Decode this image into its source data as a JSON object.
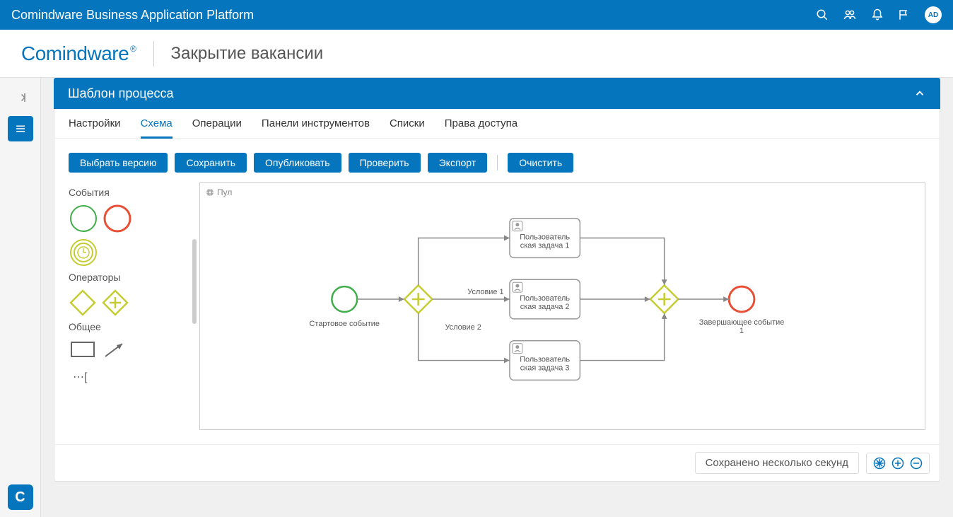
{
  "topbar": {
    "title": "Comindware Business Application Platform",
    "avatar": "AD"
  },
  "subheader": {
    "logo": "Comindware",
    "page_title": "Закрытие вакансии"
  },
  "panel": {
    "title": "Шаблон процесса",
    "tabs": [
      "Настройки",
      "Схема",
      "Операции",
      "Панели инструментов",
      "Списки",
      "Права доступа"
    ],
    "active_tab": 1,
    "toolbar": {
      "select_version": "Выбрать версию",
      "save": "Сохранить",
      "publish": "Опубликовать",
      "check": "Проверить",
      "export": "Экспорт",
      "clear": "Очистить"
    },
    "palette": {
      "events": "События",
      "operators": "Операторы",
      "general": "Общее"
    },
    "canvas": {
      "pool_label": "Пул",
      "start_label": "Стартовое событие",
      "end_label": "Завершающее событие 1",
      "cond1": "Условие 1",
      "cond2": "Условие 2",
      "task1": "Пользователь\nская задача 1",
      "task2": "Пользователь\nская задача 2",
      "task3": "Пользователь\nская задача 3",
      "colors": {
        "start_stroke": "#3fae4a",
        "end_stroke": "#e94f35",
        "gateway_stroke": "#c5cc31",
        "task_border": "#999",
        "edge": "#888"
      }
    },
    "status": "Сохранено несколько секунд"
  }
}
